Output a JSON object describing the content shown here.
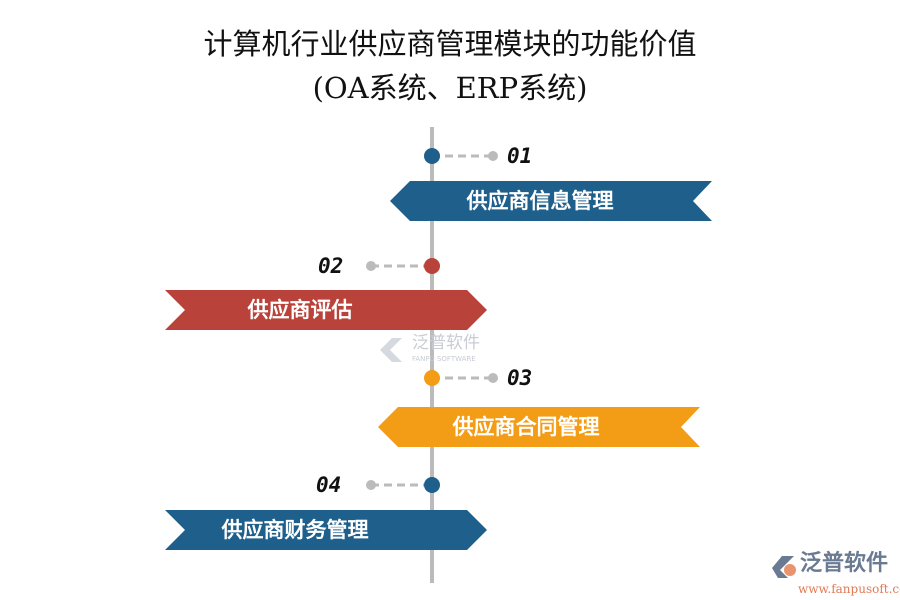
{
  "title": {
    "line1": "计算机行业供应商管理模块的功能价值",
    "line2": "(OA系统、ERP系统)"
  },
  "items": [
    {
      "number": "01",
      "label": "供应商信息管理",
      "color": "#1f5f8b"
    },
    {
      "number": "02",
      "label": "供应商评估",
      "color": "#b9423a"
    },
    {
      "number": "03",
      "label": "供应商合同管理",
      "color": "#f39c16"
    },
    {
      "number": "04",
      "label": "供应商财务管理",
      "color": "#1f5f8b"
    }
  ],
  "watermark": {
    "cn": "泛普软件",
    "en": "FANPU SOFTWARE"
  },
  "logo": {
    "cn": "泛普软件",
    "url": "www.fanpusoft.com"
  }
}
